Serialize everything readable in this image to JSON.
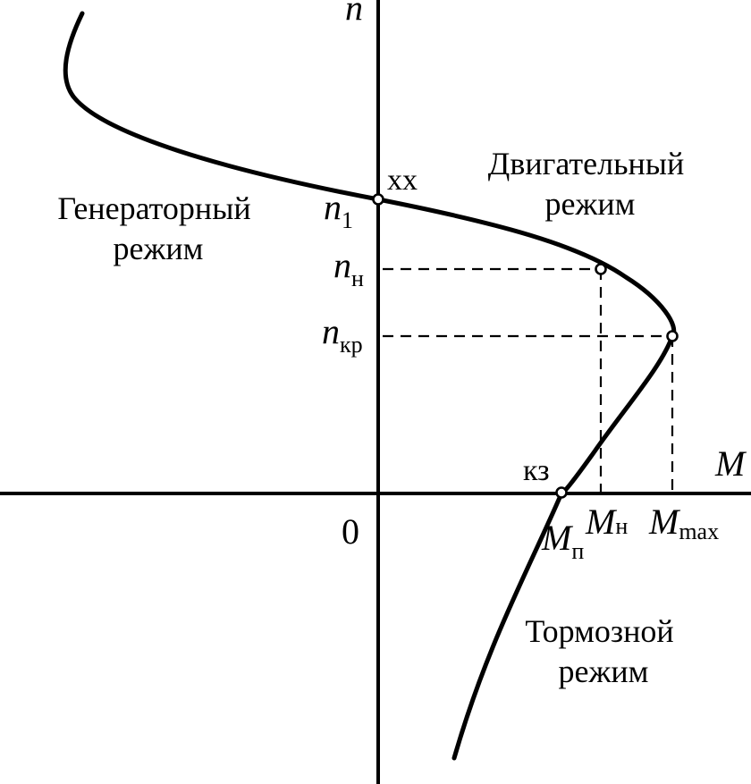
{
  "axes": {
    "y_label": "n",
    "x_label": "M",
    "origin_label": "0"
  },
  "regions": {
    "motor": [
      "Двигательный",
      "режим"
    ],
    "generator": [
      "Генераторный",
      "режим"
    ],
    "brake": [
      "Тормозной",
      "режим"
    ]
  },
  "points": {
    "idle": "хх",
    "short_circuit": "кз"
  },
  "speed_marks": {
    "n1": {
      "main": "n",
      "sub": "1"
    },
    "nn": {
      "main": "n",
      "sub": "н"
    },
    "nkr": {
      "main": "n",
      "sub": "кр"
    }
  },
  "torque_marks": {
    "Mp": {
      "main": "M",
      "sub": "п"
    },
    "Mn": {
      "main": "M",
      "sub": "н"
    },
    "Mmax": {
      "main": "M",
      "sub": "max"
    }
  },
  "colors": {
    "line": "#000000",
    "background": "#ffffff"
  }
}
